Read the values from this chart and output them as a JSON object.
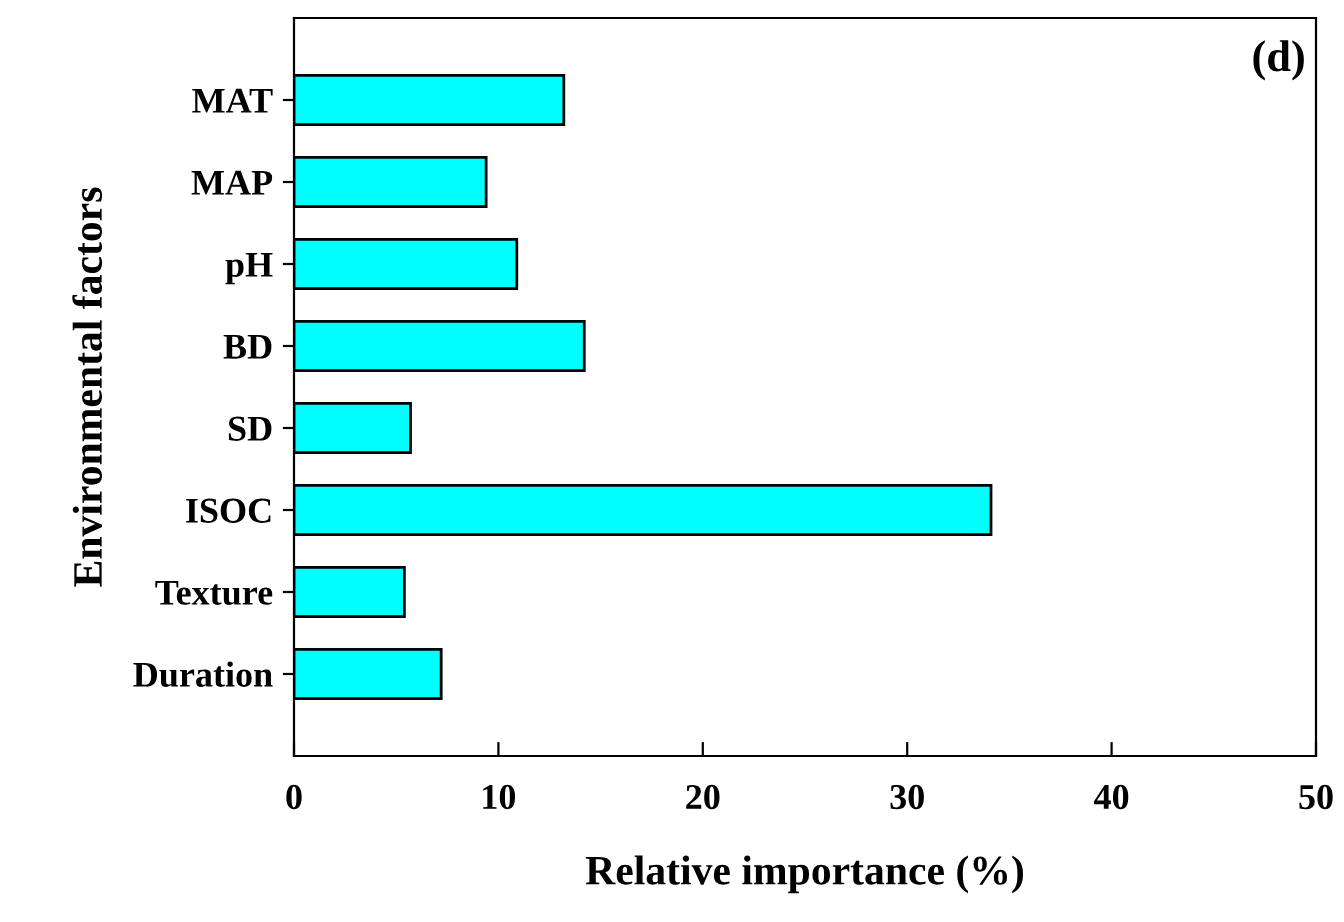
{
  "chart_data": {
    "type": "bar",
    "orientation": "horizontal",
    "categories": [
      "MAT",
      "MAP",
      "pH",
      "BD",
      "SD",
      "ISOC",
      "Texture",
      "Duration"
    ],
    "values": [
      13.2,
      9.4,
      10.9,
      14.2,
      5.7,
      34.1,
      5.4,
      7.2
    ],
    "color": "#00ffff",
    "xlabel": "Relative importance (%)",
    "ylabel": "Environmental factors",
    "xlim": [
      0,
      50
    ],
    "xticks": [
      0,
      10,
      20,
      30,
      40,
      50
    ],
    "annotations": [
      "(d)"
    ],
    "grid": false,
    "legend": false
  }
}
